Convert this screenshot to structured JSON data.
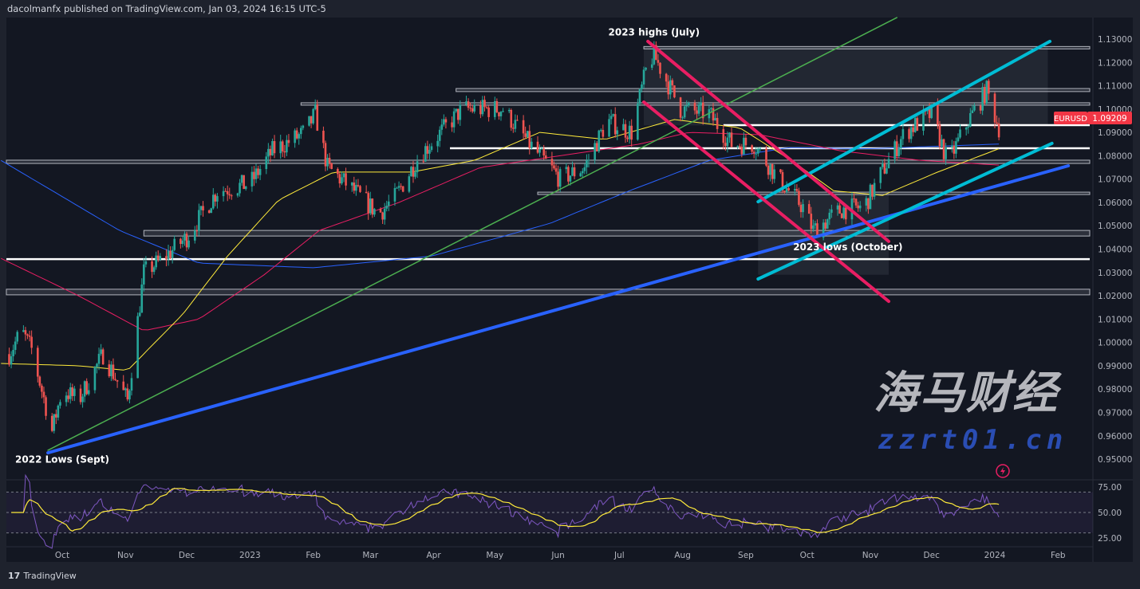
{
  "header": {
    "publisher_line": "dacolmanfx published on TradingView.com, Jan 03, 2024 16:15 UTC-5"
  },
  "footer": {
    "brand": "TradingView",
    "logo_mark": "17"
  },
  "watermark": {
    "text": "海马财经",
    "site": "zzrt01.cn"
  },
  "colors": {
    "background": "#131722",
    "up": "#26a69a",
    "down": "#ef5350",
    "price_label": "#f23645"
  },
  "chart_data": {
    "type": "candlestick",
    "symbol": "EURUSD",
    "last_price": "1.09209",
    "ylim": [
      0.95,
      1.13
    ],
    "y_ticks": [
      "1.13000",
      "1.12000",
      "1.11000",
      "1.10000",
      "1.09000",
      "1.08000",
      "1.07000",
      "1.06000",
      "1.05000",
      "1.04000",
      "1.03000",
      "1.02000",
      "1.01000",
      "1.00000",
      "0.99000",
      "0.98000",
      "0.97000",
      "0.96000",
      "0.95000"
    ],
    "x_ticks": [
      {
        "label": "Oct",
        "date": "2022-10-01"
      },
      {
        "label": "Nov",
        "date": "2022-11-01"
      },
      {
        "label": "Dec",
        "date": "2022-12-01"
      },
      {
        "label": "2023",
        "date": "2023-01-01"
      },
      {
        "label": "Feb",
        "date": "2023-02-01"
      },
      {
        "label": "Mar",
        "date": "2023-03-01"
      },
      {
        "label": "Apr",
        "date": "2023-04-01"
      },
      {
        "label": "May",
        "date": "2023-05-01"
      },
      {
        "label": "Jun",
        "date": "2023-06-01"
      },
      {
        "label": "Jul",
        "date": "2023-07-01"
      },
      {
        "label": "Aug",
        "date": "2023-08-01"
      },
      {
        "label": "Sep",
        "date": "2023-09-01"
      },
      {
        "label": "Oct",
        "date": "2023-10-01"
      },
      {
        "label": "Nov",
        "date": "2023-11-01"
      },
      {
        "label": "Dec",
        "date": "2023-12-01"
      },
      {
        "label": "2024",
        "date": "2024-01-01"
      },
      {
        "label": "Feb",
        "date": "2024-02-01"
      }
    ],
    "price_path": [
      [
        "2022-09-05",
        0.995
      ],
      [
        "2022-09-11",
        1.005
      ],
      [
        "2022-09-16",
        0.997
      ],
      [
        "2022-09-26",
        0.962
      ],
      [
        "2022-10-01",
        0.98
      ],
      [
        "2022-10-09",
        0.975
      ],
      [
        "2022-10-21",
        0.995
      ],
      [
        "2022-11-02",
        0.975
      ],
      [
        "2022-11-10",
        1.03
      ],
      [
        "2022-11-18",
        1.035
      ],
      [
        "2022-12-01",
        1.045
      ],
      [
        "2022-12-16",
        1.065
      ],
      [
        "2023-01-01",
        1.068
      ],
      [
        "2023-01-12",
        1.082
      ],
      [
        "2023-01-28",
        1.09
      ],
      [
        "2023-02-02",
        1.098
      ],
      [
        "2023-02-08",
        1.075
      ],
      [
        "2023-02-21",
        1.065
      ],
      [
        "2023-03-05",
        1.055
      ],
      [
        "2023-03-13",
        1.062
      ],
      [
        "2023-03-25",
        1.08
      ],
      [
        "2023-04-15",
        1.1
      ],
      [
        "2023-04-25",
        1.1
      ],
      [
        "2023-05-05",
        1.1
      ],
      [
        "2023-05-18",
        1.085
      ],
      [
        "2023-06-02",
        1.07
      ],
      [
        "2023-06-14",
        1.075
      ],
      [
        "2023-06-25",
        1.095
      ],
      [
        "2023-07-07",
        1.09
      ],
      [
        "2023-07-15",
        1.12
      ],
      [
        "2023-07-18",
        1.123
      ],
      [
        "2023-07-31",
        1.1
      ],
      [
        "2023-08-14",
        1.098
      ],
      [
        "2023-08-25",
        1.085
      ],
      [
        "2023-09-05",
        1.085
      ],
      [
        "2023-09-17",
        1.07
      ],
      [
        "2023-09-29",
        1.058
      ],
      [
        "2023-10-04",
        1.048
      ],
      [
        "2023-10-18",
        1.057
      ],
      [
        "2023-10-29",
        1.058
      ],
      [
        "2023-11-06",
        1.072
      ],
      [
        "2023-11-18",
        1.09
      ],
      [
        "2023-12-01",
        1.098
      ],
      [
        "2023-12-09",
        1.077
      ],
      [
        "2023-12-19",
        1.095
      ],
      [
        "2023-12-28",
        1.108
      ],
      [
        "2024-01-03",
        1.092
      ]
    ],
    "moving_averages": [
      {
        "color": "#2962ff",
        "points": [
          [
            "2022-09-01",
            1.078
          ],
          [
            "2022-10-29",
            1.048
          ],
          [
            "2022-12-07",
            1.034
          ],
          [
            "2023-02-01",
            1.032
          ],
          [
            "2023-03-31",
            1.037
          ],
          [
            "2023-05-28",
            1.051
          ],
          [
            "2023-07-06",
            1.065
          ],
          [
            "2023-08-14",
            1.078
          ],
          [
            "2023-09-22",
            1.0835
          ],
          [
            "2023-10-31",
            1.083
          ],
          [
            "2024-01-03",
            1.085
          ]
        ]
      },
      {
        "color": "#e91e63",
        "points": [
          [
            "2022-09-01",
            1.036
          ],
          [
            "2022-10-09",
            1.02
          ],
          [
            "2022-11-10",
            1.005
          ],
          [
            "2022-12-07",
            1.01
          ],
          [
            "2023-01-08",
            1.029
          ],
          [
            "2023-02-04",
            1.048
          ],
          [
            "2023-03-15",
            1.06
          ],
          [
            "2023-04-24",
            1.075
          ],
          [
            "2023-06-02",
            1.08
          ],
          [
            "2023-07-11",
            1.085
          ],
          [
            "2023-08-04",
            1.09
          ],
          [
            "2023-09-08",
            1.089
          ],
          [
            "2023-10-18",
            1.082
          ],
          [
            "2023-11-26",
            1.078
          ],
          [
            "2024-01-03",
            1.076
          ]
        ]
      },
      {
        "color": "#ffeb3b",
        "points": [
          [
            "2022-09-01",
            0.991
          ],
          [
            "2022-10-09",
            0.99
          ],
          [
            "2022-11-02",
            0.988
          ],
          [
            "2022-11-29",
            1.012
          ],
          [
            "2022-12-21",
            1.037
          ],
          [
            "2023-01-15",
            1.061
          ],
          [
            "2023-02-11",
            1.073
          ],
          [
            "2023-03-21",
            1.073
          ],
          [
            "2023-04-21",
            1.078
          ],
          [
            "2023-05-23",
            1.09
          ],
          [
            "2023-06-24",
            1.087
          ],
          [
            "2023-07-28",
            1.0955
          ],
          [
            "2023-08-29",
            1.092
          ],
          [
            "2023-09-25",
            1.077
          ],
          [
            "2023-10-14",
            1.065
          ],
          [
            "2023-11-07",
            1.063
          ],
          [
            "2023-12-04",
            1.073
          ],
          [
            "2024-01-03",
            1.083
          ]
        ]
      }
    ],
    "trendlines": [
      {
        "color": "#4caf50",
        "width": 1.5,
        "from": [
          "2022-09-24",
          0.9538
        ],
        "to": [
          "2023-11-14",
          1.1392
        ]
      },
      {
        "color": "#2962ff",
        "width": 4,
        "from": [
          "2022-09-24",
          0.9527
        ],
        "to": [
          "2024-02-06",
          1.0757
        ]
      },
      {
        "color": "#00bcd4",
        "width": 4,
        "from": [
          "2023-09-07",
          1.0272
        ],
        "to": [
          "2024-01-29",
          1.0853
        ]
      },
      {
        "color": "#00bcd4",
        "width": 4,
        "from": [
          "2023-09-07",
          1.0603
        ],
        "to": [
          "2024-01-28",
          1.129
        ]
      },
      {
        "color": "#e91e63",
        "width": 4,
        "from": [
          "2023-07-15",
          1.129
        ],
        "to": [
          "2023-11-10",
          1.0433
        ]
      },
      {
        "color": "#e91e63",
        "width": 4,
        "from": [
          "2023-07-13",
          1.103
        ],
        "to": [
          "2023-11-10",
          1.0176
        ]
      }
    ],
    "levels": [
      {
        "start": "2023-07-13",
        "top": 1.1268,
        "bottom": 1.1258,
        "kind": "zone"
      },
      {
        "start": "2023-04-12",
        "top": 1.1088,
        "bottom": 1.1075,
        "kind": "zone"
      },
      {
        "start": "2023-01-26",
        "top": 1.1027,
        "bottom": 1.1017,
        "kind": "zone"
      },
      {
        "start": "2023-08-21",
        "top": 1.0931,
        "bottom": 1.0931,
        "kind": "line"
      },
      {
        "start": "2023-04-09",
        "top": 1.0832,
        "bottom": 1.0832,
        "kind": "line"
      },
      {
        "start": null,
        "top": 1.0781,
        "bottom": 1.0767,
        "kind": "zone"
      },
      {
        "start": "2023-05-22",
        "top": 1.0644,
        "bottom": 1.0634,
        "kind": "zone"
      },
      {
        "start": "2022-11-10",
        "top": 1.048,
        "bottom": 1.0456,
        "kind": "zone"
      },
      {
        "start": null,
        "top": 1.0357,
        "bottom": 1.0357,
        "kind": "line"
      },
      {
        "start": null,
        "top": 1.0228,
        "bottom": 1.0204,
        "kind": "zone"
      }
    ],
    "boxes": [
      {
        "from": "2023-07-13",
        "to": "2024-01-27",
        "top": 1.127,
        "bottom": 1.093
      },
      {
        "from": "2023-09-07",
        "to": "2023-11-10",
        "top": 1.064,
        "bottom": 1.029
      }
    ],
    "annotations": [
      {
        "text": "2023 highs (July)",
        "date": "2023-07-18",
        "price": 1.1315
      },
      {
        "text": "2023 lows (October)",
        "date": "2023-10-21",
        "price": 1.0395
      },
      {
        "text": "2022 Lows (Sept)",
        "date": "2022-10-01",
        "price": 0.9485
      }
    ],
    "rsi": {
      "ticks": [
        "75.00",
        "50.00",
        "25.00"
      ],
      "levels": [
        70,
        50,
        30
      ],
      "line_color": "#7e57c2",
      "signal_color": "#ffeb3b"
    }
  }
}
